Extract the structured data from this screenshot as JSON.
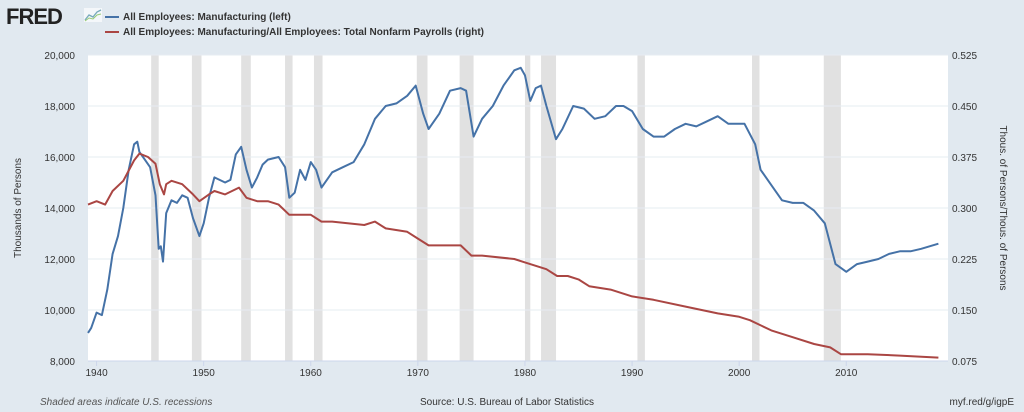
{
  "logo": "FRED",
  "footer": {
    "note": "Shaded areas indicate U.S. recessions",
    "source": "Source: U.S. Bureau of Labor Statistics",
    "link": "myf.red/g/igpE"
  },
  "colors": {
    "blue": "#4572a7",
    "red": "#aa4643",
    "recession": "#e1e1e1",
    "background": "#e1e9f0"
  },
  "chart_data": {
    "type": "line",
    "xlim": [
      1939.2,
      2019.5
    ],
    "xticks": [
      1940,
      1950,
      1960,
      1970,
      1980,
      1990,
      2000,
      2010
    ],
    "ylabel": "Thousands of Persons",
    "ylim": [
      8000,
      20000
    ],
    "yticks": [
      8000,
      10000,
      12000,
      14000,
      16000,
      18000,
      20000
    ],
    "ytick_labels": [
      "8,000",
      "10,000",
      "12,000",
      "14,000",
      "16,000",
      "18,000",
      "20,000"
    ],
    "y2label": "Thous. of Persons/Thous. of Persons",
    "y2lim": [
      0.075,
      0.525
    ],
    "y2ticks": [
      0.075,
      0.15,
      0.225,
      0.3,
      0.375,
      0.45,
      0.525
    ],
    "y2tick_labels": [
      "0.075",
      "0.150",
      "0.225",
      "0.300",
      "0.375",
      "0.450",
      "0.525"
    ],
    "grid": true,
    "legend": "top-left",
    "recessions": [
      [
        1945.1,
        1945.8
      ],
      [
        1948.9,
        1949.8
      ],
      [
        1953.5,
        1954.4
      ],
      [
        1957.6,
        1958.3
      ],
      [
        1960.3,
        1961.1
      ],
      [
        1969.9,
        1970.9
      ],
      [
        1973.9,
        1975.2
      ],
      [
        1980.0,
        1980.5
      ],
      [
        1981.5,
        1982.9
      ],
      [
        1990.5,
        1991.2
      ],
      [
        2001.2,
        2001.9
      ],
      [
        2007.9,
        2009.5
      ]
    ],
    "series": [
      {
        "name": "All Employees: Manufacturing (left)",
        "axis": "left",
        "color": "#4572a7",
        "x": [
          1939.2,
          1939.5,
          1940,
          1940.5,
          1941,
          1941.5,
          1942,
          1942.5,
          1943,
          1943.5,
          1943.8,
          1944,
          1944.5,
          1945,
          1945.5,
          1945.8,
          1946,
          1946.2,
          1946.5,
          1947,
          1947.5,
          1948,
          1948.5,
          1949,
          1949.6,
          1950,
          1950.5,
          1951,
          1952,
          1952.5,
          1953,
          1953.5,
          1954,
          1954.5,
          1955,
          1955.5,
          1956,
          1957,
          1957.6,
          1958,
          1958.5,
          1959,
          1959.5,
          1960,
          1960.5,
          1961,
          1962,
          1963,
          1964,
          1965,
          1966,
          1967,
          1968,
          1969,
          1969.8,
          1970.5,
          1971,
          1972,
          1973,
          1974,
          1974.5,
          1975.2,
          1976,
          1977,
          1978,
          1979,
          1979.6,
          1980,
          1980.5,
          1981,
          1981.5,
          1982,
          1982.9,
          1983.5,
          1984.5,
          1985.5,
          1986.5,
          1987.5,
          1988.5,
          1989.2,
          1990,
          1991,
          1992,
          1993,
          1994,
          1995,
          1996,
          1997,
          1998,
          1999,
          2000.5,
          2001.5,
          2002,
          2003,
          2004,
          2005,
          2006,
          2007,
          2008,
          2009,
          2010,
          2011,
          2012,
          2013,
          2014,
          2015,
          2016,
          2017,
          2018.6
        ],
        "y": [
          9100,
          9300,
          9900,
          9800,
          10800,
          12200,
          12900,
          14000,
          15500,
          16500,
          16600,
          16200,
          15900,
          15600,
          14500,
          12400,
          12500,
          11900,
          13800,
          14300,
          14200,
          14500,
          14400,
          13600,
          12900,
          13400,
          14400,
          15200,
          15000,
          15100,
          16100,
          16400,
          15500,
          14800,
          15200,
          15700,
          15900,
          16000,
          15600,
          14400,
          14600,
          15500,
          15100,
          15800,
          15500,
          14800,
          15400,
          15600,
          15800,
          16500,
          17500,
          18000,
          18100,
          18400,
          18800,
          17700,
          17100,
          17700,
          18600,
          18700,
          18600,
          16800,
          17500,
          18000,
          18800,
          19400,
          19500,
          19200,
          18200,
          18700,
          18800,
          18000,
          16700,
          17100,
          18000,
          17900,
          17500,
          17600,
          18000,
          18000,
          17800,
          17100,
          16800,
          16800,
          17100,
          17300,
          17200,
          17400,
          17600,
          17300,
          17300,
          16500,
          15500,
          14900,
          14300,
          14200,
          14200,
          13900,
          13400,
          11800,
          11500,
          11800,
          11900,
          12000,
          12200,
          12300,
          12300,
          12400,
          12600
        ]
      },
      {
        "name": "All Employees: Manufacturing/All Employees: Total Nonfarm Payrolls (right)",
        "axis": "right",
        "color": "#aa4643",
        "x": [
          1939.2,
          1940,
          1940.8,
          1941.5,
          1942.5,
          1943.5,
          1944,
          1944.8,
          1945.5,
          1945.9,
          1946.3,
          1946.5,
          1947,
          1948,
          1949,
          1949.6,
          1950.5,
          1951,
          1952,
          1953.3,
          1954,
          1955,
          1956,
          1957,
          1958,
          1959,
          1960,
          1961,
          1962,
          1965,
          1966,
          1967,
          1969,
          1970,
          1971,
          1973,
          1974,
          1975,
          1976,
          1979,
          1980,
          1981,
          1982,
          1983,
          1984,
          1985,
          1986,
          1988,
          1990,
          1992,
          1995,
          1998,
          2000,
          2001,
          2003,
          2005,
          2007,
          2008.5,
          2009.5,
          2012,
          2015,
          2018.6
        ],
        "y": [
          0.305,
          0.31,
          0.305,
          0.325,
          0.34,
          0.37,
          0.38,
          0.375,
          0.365,
          0.335,
          0.32,
          0.335,
          0.34,
          0.335,
          0.32,
          0.31,
          0.32,
          0.325,
          0.32,
          0.33,
          0.315,
          0.31,
          0.31,
          0.305,
          0.29,
          0.29,
          0.29,
          0.28,
          0.28,
          0.275,
          0.28,
          0.27,
          0.265,
          0.255,
          0.245,
          0.245,
          0.245,
          0.23,
          0.23,
          0.225,
          0.22,
          0.215,
          0.21,
          0.2,
          0.2,
          0.195,
          0.185,
          0.18,
          0.17,
          0.165,
          0.155,
          0.145,
          0.14,
          0.135,
          0.12,
          0.11,
          0.1,
          0.095,
          0.085,
          0.085,
          0.083,
          0.08
        ]
      }
    ]
  }
}
